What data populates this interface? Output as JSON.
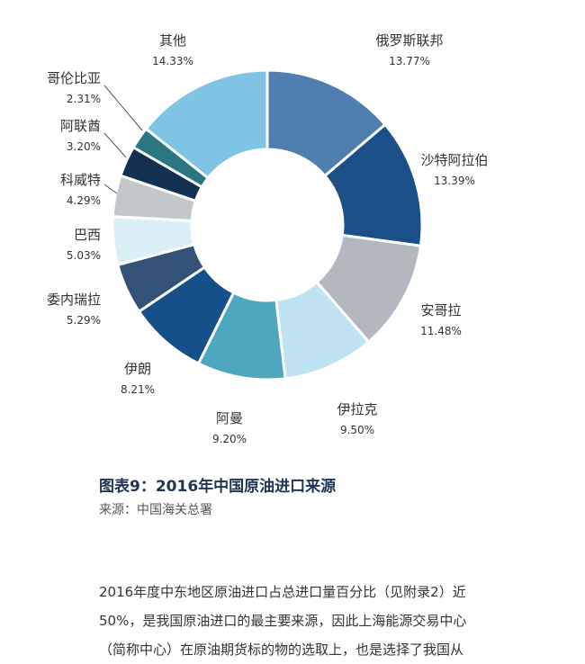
{
  "chart_data": {
    "type": "pie",
    "donut": true,
    "slices": [
      {
        "label": "俄罗斯联邦",
        "value": 13.77,
        "pct_label": "13.77%",
        "color": "#4f7fae"
      },
      {
        "label": "沙特阿拉伯",
        "value": 13.39,
        "pct_label": "13.39%",
        "color": "#1a4f88"
      },
      {
        "label": "安哥拉",
        "value": 11.48,
        "pct_label": "11.48%",
        "color": "#b3b8be"
      },
      {
        "label": "伊拉克",
        "value": 9.5,
        "pct_label": "9.50%",
        "color": "#c0e3f3"
      },
      {
        "label": "阿曼",
        "value": 9.2,
        "pct_label": "9.20%",
        "color": "#4ea7bf"
      },
      {
        "label": "伊朗",
        "value": 8.21,
        "pct_label": "8.21%",
        "color": "#155089"
      },
      {
        "label": "委内瑞拉",
        "value": 5.29,
        "pct_label": "5.29%",
        "color": "#335277"
      },
      {
        "label": "巴西",
        "value": 5.03,
        "pct_label": "5.03%",
        "color": "#dbeff6"
      },
      {
        "label": "科威特",
        "value": 4.29,
        "pct_label": "4.29%",
        "color": "#c3c6ca"
      },
      {
        "label": "阿联酋",
        "value": 3.2,
        "pct_label": "3.20%",
        "color": "#12304f"
      },
      {
        "label": "哥伦比亚",
        "value": 2.31,
        "pct_label": "2.31%",
        "color": "#2a7682"
      },
      {
        "label": "其他",
        "value": 14.33,
        "pct_label": "14.33%",
        "color": "#7fc4e5"
      }
    ]
  },
  "caption": "图表9：2016年中国原油进口来源",
  "source": "来源：中国海关总署",
  "body_lines": [
    "2016年度中东地区原油进口占总进口量百分比（见附录2）近",
    "50%，是我国原油进口的最主要来源，因此上海能源交易中心",
    "（简称中心）在原油期货标的物的选取上，也是选择了我国从"
  ]
}
